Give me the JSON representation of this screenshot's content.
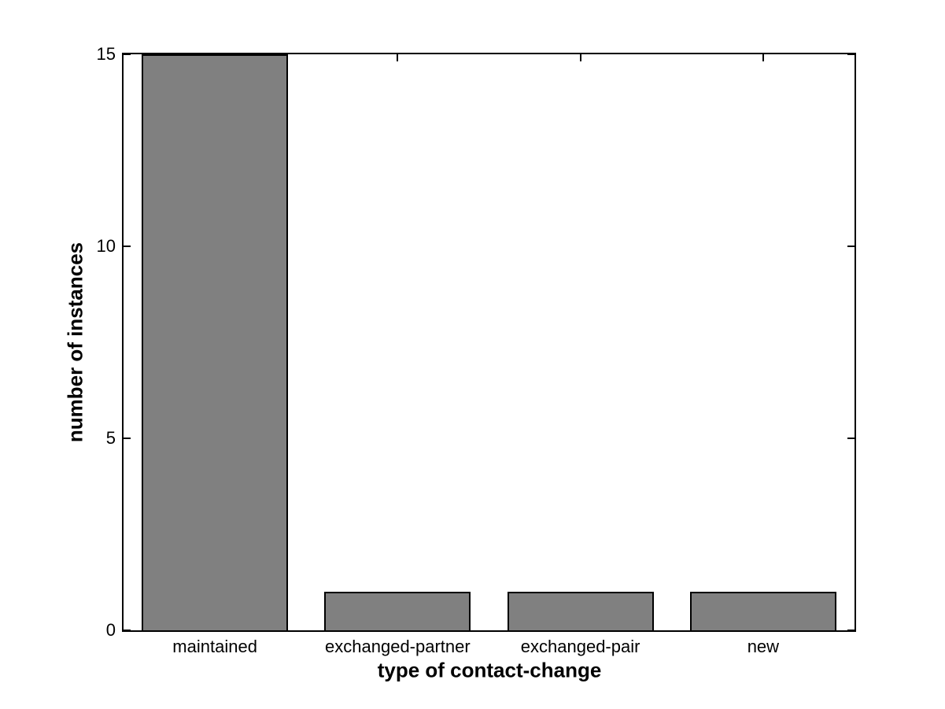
{
  "chart_data": {
    "type": "bar",
    "categories": [
      "maintained",
      "exchanged-partner",
      "exchanged-pair",
      "new"
    ],
    "values": [
      15,
      1,
      1,
      1
    ],
    "title": "",
    "xlabel": "type of contact-change",
    "ylabel": "number of instances",
    "ylim": [
      0,
      15
    ],
    "yticks": [
      0,
      5,
      10,
      15
    ],
    "ytick_labels": [
      "0",
      "5",
      "10",
      "15"
    ],
    "bar_width_fraction": 0.8,
    "grid": false,
    "legend_position": "none",
    "tick_direction": "in",
    "colors": {
      "bar_fill": "#808080",
      "bar_edge": "#000000",
      "axis": "#000000",
      "background": "#ffffff",
      "text": "#000000"
    }
  }
}
